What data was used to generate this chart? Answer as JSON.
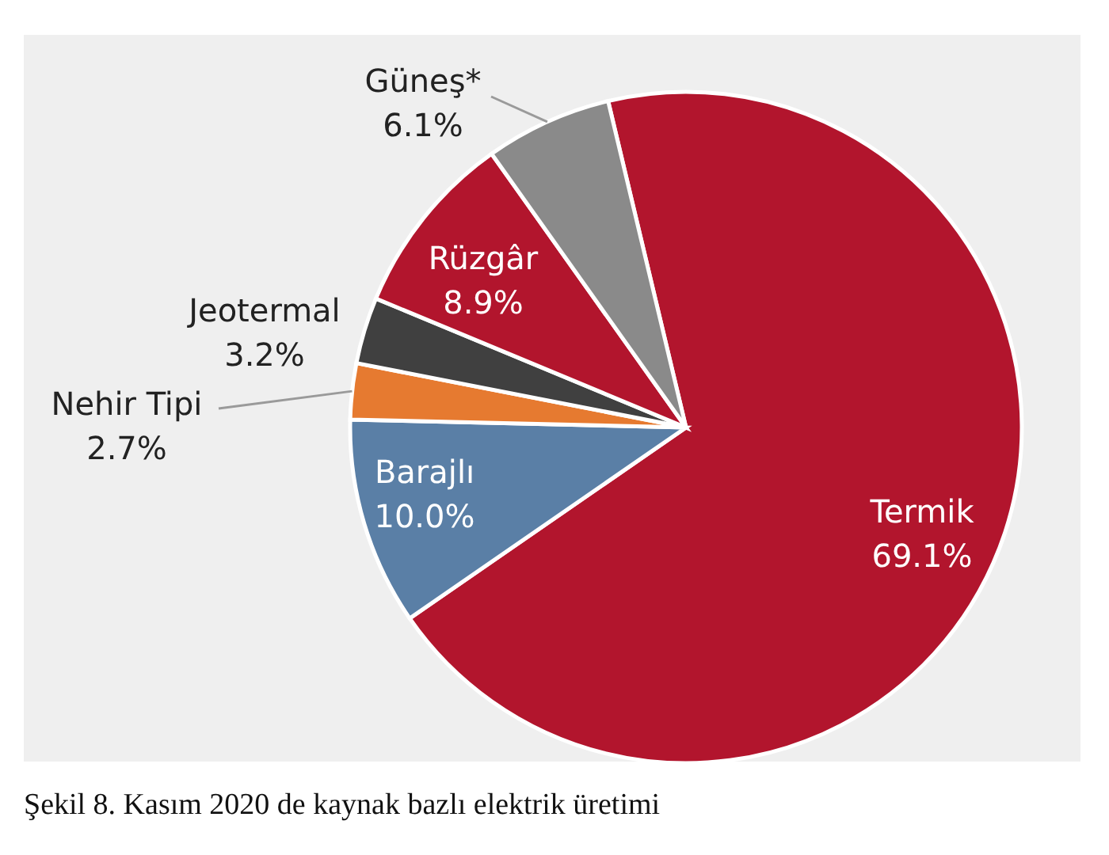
{
  "chart_data": {
    "type": "pie",
    "categories": [
      "Termik",
      "Barajlı",
      "Nehir Tipi",
      "Jeotermal",
      "Rüzgâr",
      "Güneş*"
    ],
    "values": [
      69.1,
      10.0,
      2.7,
      3.2,
      8.9,
      6.1
    ],
    "colors": [
      "#b2152d",
      "#5a7fa6",
      "#e67a30",
      "#404040",
      "#b2152d",
      "#8a8a8a"
    ],
    "value_labels": [
      "69.1%",
      "10.0%",
      "2.7%",
      "3.2%",
      "8.9%",
      "6.1%"
    ],
    "annotations": [
      "Şekil 8. Kasım 2020 de kaynak bazlı elektrik üretimi"
    ]
  }
}
